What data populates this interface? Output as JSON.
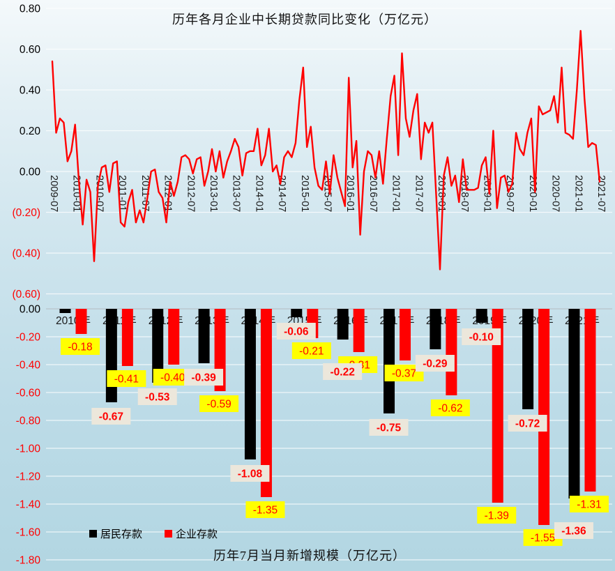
{
  "chart_data": [
    {
      "type": "line",
      "title": "历年各月企业中长期贷款同比变化（万亿元）",
      "x_start": "2009-07",
      "x_interval": "monthly",
      "x_tick_labels": [
        "2009-07",
        "2010-01",
        "2010-07",
        "2011-01",
        "2011-07",
        "2012-01",
        "2012-07",
        "2013-01",
        "2013-07",
        "2014-01",
        "2014-07",
        "2015-01",
        "2015-07",
        "2016-01",
        "2016-07",
        "2017-01",
        "2017-07",
        "2018-01",
        "2018-07",
        "2019-01",
        "2019-07",
        "2020-01",
        "2020-07",
        "2021-01",
        "2021-07"
      ],
      "y_tick_labels": [
        "0.80",
        "0.60",
        "0.40",
        "0.20",
        "0.00",
        "(0.20)",
        "(0.40)",
        "(0.60)"
      ],
      "ylim": [
        -0.6,
        0.8
      ],
      "grid": true,
      "line_color": "#ff0000",
      "positive_tick_color": "#000000",
      "negative_tick_color": "#ff0000",
      "values": [
        0.54,
        0.19,
        0.26,
        0.24,
        0.05,
        0.1,
        0.23,
        -0.05,
        -0.26,
        -0.04,
        -0.1,
        -0.44,
        -0.07,
        0.02,
        0.03,
        -0.1,
        0.04,
        0.05,
        -0.25,
        -0.27,
        -0.15,
        -0.09,
        -0.25,
        -0.19,
        -0.25,
        -0.13,
        0.0,
        0.01,
        -0.1,
        -0.13,
        -0.25,
        -0.05,
        -0.12,
        -0.05,
        0.07,
        0.08,
        0.06,
        -0.01,
        0.06,
        0.07,
        -0.07,
        0.0,
        0.11,
        0.0,
        0.1,
        -0.03,
        0.05,
        0.1,
        0.16,
        0.12,
        -0.02,
        0.09,
        0.1,
        0.1,
        0.21,
        0.03,
        0.08,
        0.21,
        0.0,
        0.03,
        -0.06,
        0.07,
        0.1,
        0.07,
        0.14,
        0.35,
        0.51,
        0.12,
        0.22,
        0.02,
        -0.07,
        -0.09,
        0.05,
        -0.11,
        0.08,
        -0.03,
        -0.1,
        -0.17,
        0.46,
        0.02,
        0.15,
        -0.31,
        0.0,
        0.1,
        0.08,
        -0.03,
        0.1,
        -0.06,
        0.16,
        0.37,
        0.47,
        0.08,
        0.58,
        0.26,
        0.17,
        0.3,
        0.38,
        0.06,
        0.24,
        0.19,
        0.24,
        -0.12,
        -0.48,
        -0.02,
        0.07,
        -0.07,
        -0.02,
        -0.15,
        0.06,
        -0.09,
        -0.09,
        -0.09,
        -0.08,
        0.03,
        0.07,
        -0.11,
        0.2,
        -0.18,
        -0.03,
        -0.02,
        -0.1,
        -0.06,
        0.19,
        0.11,
        0.08,
        0.19,
        0.26,
        -0.1,
        0.32,
        0.28,
        0.29,
        0.3,
        0.37,
        0.24,
        0.51,
        0.19,
        0.18,
        0.16,
        0.4,
        0.69,
        0.36,
        0.12,
        0.14,
        0.13,
        -0.05
      ]
    },
    {
      "type": "bar",
      "title": "历年7月当月新增规模（万亿元）",
      "categories": [
        "2010年",
        "2011年",
        "2012年",
        "2013年",
        "2014年",
        "2015年",
        "2016年",
        "2017年",
        "2018年",
        "2019年",
        "2020年",
        "2021年"
      ],
      "series": [
        {
          "name": "居民存款",
          "color": "#000000",
          "values": [
            -0.03,
            -0.67,
            -0.53,
            -0.39,
            -1.08,
            -0.06,
            -0.22,
            -0.75,
            -0.29,
            -0.1,
            -0.72,
            -1.36
          ],
          "data_labels": [
            "",
            "-0.67",
            "-0.53",
            "-0.39",
            "-1.08",
            "-0.06",
            "-0.22",
            "-0.75",
            "-0.29",
            "-0.10",
            "-0.72",
            "-1.36"
          ],
          "label_bg": "#ece7db",
          "label_text_color": "#ff0000",
          "label_bold": true
        },
        {
          "name": "企业存款",
          "color": "#ff0000",
          "values": [
            -0.18,
            -0.41,
            -0.4,
            -0.59,
            -1.35,
            -0.21,
            -0.31,
            -0.37,
            -0.62,
            -1.39,
            -1.55,
            -1.31
          ],
          "data_labels": [
            "-0.18",
            "-0.41",
            "-0.40",
            "-0.59",
            "-1.35",
            "-0.21",
            "-0.31",
            "-0.37",
            "-0.62",
            "-1.39",
            "-1.55",
            "-1.31"
          ],
          "label_bg": "#ffff00",
          "label_text_color": "#ff0000",
          "label_bold": false
        }
      ],
      "y_tick_labels": [
        "0.00",
        "-0.20",
        "-0.40",
        "-0.60",
        "-0.80",
        "-1.00",
        "-1.20",
        "-1.40",
        "-1.60",
        "-1.80"
      ],
      "ylim": [
        -1.8,
        0
      ],
      "grid": true,
      "legend_position": "bottom-left",
      "positive_tick_color": "#000000",
      "negative_tick_color": "#ff0000"
    }
  ]
}
